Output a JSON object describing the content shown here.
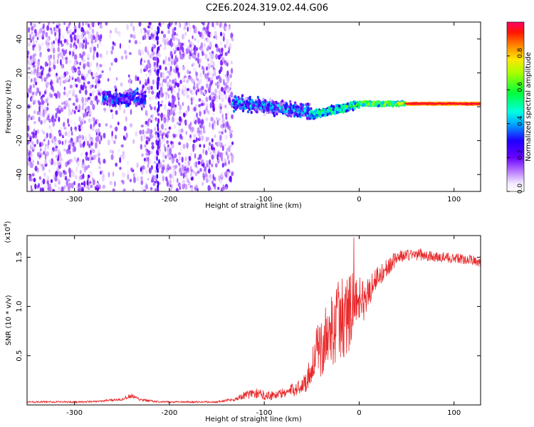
{
  "title": "C2E6.2024.319.02.44.G06",
  "chart_data": [
    {
      "type": "heatmap",
      "xlabel": "Height of straight line (km)",
      "ylabel": "Frequency (Hz)",
      "xlim": [
        -350,
        128
      ],
      "ylim": [
        -50,
        50
      ],
      "xticks": [
        -300,
        -200,
        -100,
        0,
        100
      ],
      "yticks": [
        -40,
        -20,
        0,
        20,
        40
      ],
      "grid": false,
      "colorbar": {
        "label": "Normalized spectral amplitude",
        "range": [
          0,
          1
        ],
        "ticks": [
          "0.0",
          "0.2",
          "0.4",
          "0.6",
          "0.8"
        ],
        "colormap": "rainbow (white → violet → blue → cyan → green → yellow → red → magenta)"
      },
      "regions": [
        {
          "x_range": [
            -350,
            -270
          ],
          "frequency_range": [
            -50,
            50
          ],
          "amplitude": "low (0.0–0.2)",
          "note": "scattered noise"
        },
        {
          "x_range": [
            -270,
            -230
          ],
          "frequency_range": [
            -50,
            50
          ],
          "amplitude": "low",
          "note": "sparse noise gap"
        },
        {
          "x_range": [
            -270,
            -225
          ],
          "frequency_range": [
            -2,
            12
          ],
          "amplitude": "0.1–0.35",
          "note": "compact signal cluster near 5 Hz"
        },
        {
          "x_range": [
            -230,
            -133
          ],
          "frequency_range": [
            -50,
            50
          ],
          "amplitude": "low (0.0–0.2)",
          "note": "scattered noise"
        },
        {
          "x_range": [
            -133,
            -50
          ],
          "frequency_range": [
            -10,
            12
          ],
          "amplitude": "0.1–0.5",
          "note": "signal band, centre dips to about -5 Hz"
        },
        {
          "x_range": [
            -50,
            48
          ],
          "frequency_range": [
            -3,
            6
          ],
          "amplitude": "0.3–0.9",
          "note": "narrowing band near 1–2 Hz"
        },
        {
          "x_range": [
            48,
            128
          ],
          "frequency_range": [
            0,
            4
          ],
          "amplitude": "0.9–1.0",
          "note": "strong narrow line at about 2 Hz"
        }
      ]
    },
    {
      "type": "line",
      "xlabel": "Height of straight line (km)",
      "ylabel": "SNR (10 * v/v)",
      "scale_label": "(x10",
      "scale_exponent": "4",
      "xlim": [
        -350,
        128
      ],
      "ylim": [
        0,
        1.72
      ],
      "xticks": [
        -300,
        -200,
        -100,
        0,
        100
      ],
      "yticks": [
        "0.5",
        "1.0",
        "1.5"
      ],
      "grid": false,
      "series": [
        {
          "color": "#e8282a",
          "x": [
            -350,
            -330,
            -310,
            -290,
            -270,
            -250,
            -240,
            -230,
            -210,
            -190,
            -170,
            -150,
            -130,
            -120,
            -110,
            -100,
            -90,
            -80,
            -70,
            -60,
            -55,
            -50,
            -45,
            -40,
            -35,
            -30,
            -25,
            -20,
            -15,
            -10,
            -5,
            0,
            5,
            10,
            15,
            20,
            25,
            30,
            35,
            40,
            50,
            60,
            70,
            80,
            90,
            100,
            110,
            120,
            128
          ],
          "y": [
            0.03,
            0.03,
            0.03,
            0.03,
            0.04,
            0.06,
            0.09,
            0.05,
            0.03,
            0.03,
            0.03,
            0.03,
            0.06,
            0.1,
            0.12,
            0.1,
            0.1,
            0.12,
            0.15,
            0.2,
            0.25,
            0.4,
            0.55,
            0.55,
            0.7,
            0.75,
            0.8,
            0.9,
            0.85,
            0.95,
            1.05,
            1.1,
            1.05,
            1.15,
            1.25,
            1.3,
            1.35,
            1.4,
            1.45,
            1.5,
            1.52,
            1.53,
            1.52,
            1.5,
            1.5,
            1.49,
            1.48,
            1.47,
            1.45
          ],
          "noise_amplitude": [
            0.01,
            0.01,
            0.01,
            0.01,
            0.01,
            0.015,
            0.025,
            0.015,
            0.01,
            0.01,
            0.01,
            0.01,
            0.02,
            0.04,
            0.05,
            0.05,
            0.05,
            0.05,
            0.07,
            0.08,
            0.12,
            0.18,
            0.25,
            0.28,
            0.32,
            0.35,
            0.38,
            0.42,
            0.45,
            0.4,
            0.3,
            0.22,
            0.2,
            0.18,
            0.15,
            0.12,
            0.1,
            0.09,
            0.08,
            0.07,
            0.06,
            0.06,
            0.06,
            0.05,
            0.05,
            0.05,
            0.05,
            0.05,
            0.05
          ]
        }
      ]
    }
  ]
}
